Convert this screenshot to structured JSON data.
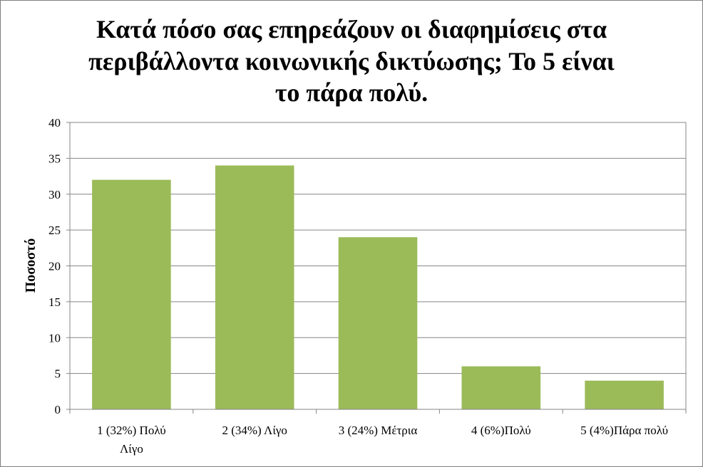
{
  "chart_data": {
    "type": "bar",
    "title": "Κατά πόσο σας επηρεάζουν οι διαφημίσεις στα περιβάλλοντα κοινωνικής δικτύωσης; Το 5 είναι το πάρα πολύ.",
    "title_lines": [
      "Κατά πόσο σας επηρεάζουν οι διαφημίσεις στα",
      "περιβάλλοντα κοινωνικής δικτύωσης; Το 5 είναι",
      "το πάρα πολύ."
    ],
    "categories": [
      "1 (32%) Πολύ Λίγο",
      "2 (34%) Λίγο",
      "3 (24%) Μέτρια",
      "4 (6%)Πολύ",
      "5 (4%)Πάρα πολύ"
    ],
    "category_lines": [
      [
        "1 (32%) Πολύ",
        "Λίγο"
      ],
      [
        "2 (34%) Λίγο"
      ],
      [
        "3 (24%) Μέτρια"
      ],
      [
        "4 (6%)Πολύ"
      ],
      [
        "5 (4%)Πάρα πολύ"
      ]
    ],
    "values": [
      32,
      34,
      24,
      6,
      4
    ],
    "xlabel": "",
    "ylabel": "Ποσοστό",
    "ylim": [
      0,
      40
    ],
    "yticks": [
      0,
      5,
      10,
      15,
      20,
      25,
      30,
      35,
      40
    ],
    "grid": true,
    "legend": "none",
    "bar_color": "#9BBB59",
    "grid_color": "#868686"
  }
}
